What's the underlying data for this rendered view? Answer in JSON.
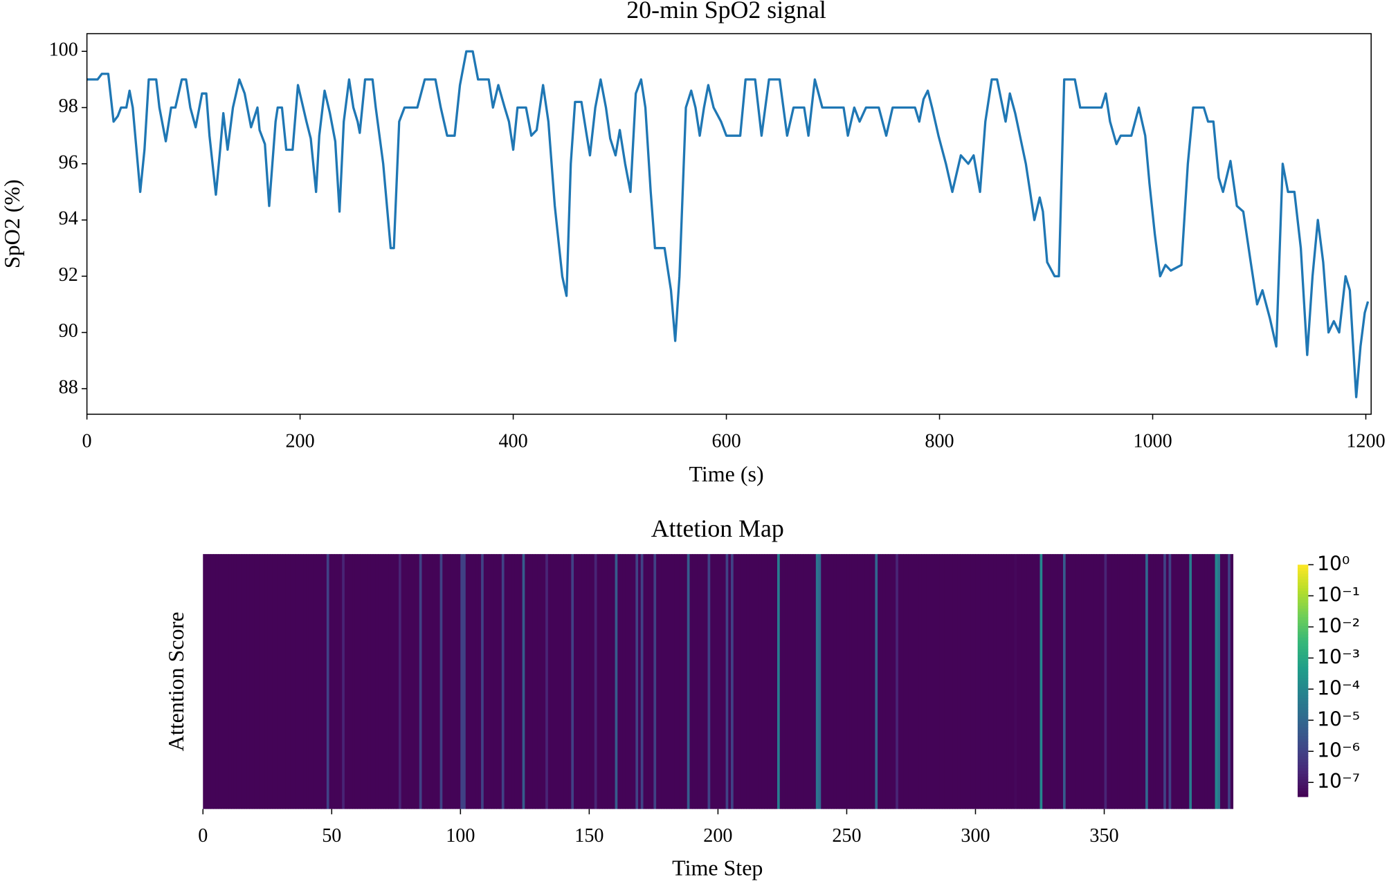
{
  "chart_data": [
    {
      "type": "line",
      "title": "20-min SpO2 signal",
      "xlabel": "Time (s)",
      "ylabel": "SpO2 (%)",
      "color": "#1f77b4",
      "x": [
        0,
        10,
        14,
        20,
        25,
        29,
        32,
        37,
        40,
        43,
        50,
        54,
        58,
        65,
        68,
        74,
        79,
        83,
        89,
        93,
        97,
        102,
        108,
        112,
        115,
        121,
        125,
        128,
        132,
        137,
        143,
        148,
        154,
        160,
        162,
        167,
        171,
        177,
        179,
        183,
        187,
        193,
        198,
        206,
        210,
        215,
        218,
        223,
        228,
        233,
        237,
        241,
        246,
        250,
        254,
        256,
        261,
        268,
        271,
        278,
        285,
        288,
        293,
        298,
        310,
        317,
        327,
        332,
        338,
        345,
        350,
        356,
        362,
        367,
        377,
        381,
        386,
        392,
        396,
        400,
        404,
        412,
        417,
        422,
        428,
        433,
        439,
        446,
        450,
        454,
        458,
        464,
        469,
        472,
        477,
        482,
        487,
        491,
        496,
        500,
        505,
        510,
        515,
        520,
        524,
        529,
        533,
        542,
        548,
        552,
        556,
        562,
        567,
        571,
        575,
        579,
        583,
        588,
        595,
        600,
        613,
        618,
        627,
        633,
        640,
        650,
        657,
        663,
        669,
        673,
        677,
        683,
        690,
        710,
        714,
        720,
        725,
        731,
        743,
        750,
        756,
        777,
        781,
        785,
        789,
        793,
        799,
        806,
        812,
        820,
        827,
        832,
        838,
        843,
        849,
        854,
        862,
        866,
        871,
        881,
        889,
        894,
        897,
        901,
        908,
        912,
        917,
        927,
        932,
        952,
        956,
        960,
        966,
        970,
        980,
        987,
        993,
        997,
        1002,
        1007,
        1012,
        1017,
        1027,
        1033,
        1038,
        1048,
        1052,
        1057,
        1062,
        1066,
        1073,
        1079,
        1085,
        1092,
        1098,
        1103,
        1110,
        1116,
        1122,
        1127,
        1133,
        1139,
        1145,
        1150,
        1155,
        1160,
        1165,
        1170,
        1175,
        1181,
        1185,
        1191,
        1195,
        1199,
        1202
      ],
      "values": [
        99,
        99,
        99.2,
        99.2,
        97.5,
        97.7,
        98,
        98,
        98.6,
        98,
        95,
        96.5,
        99,
        99,
        98,
        96.8,
        98,
        98,
        99,
        99,
        98,
        97.3,
        98.5,
        98.5,
        97,
        94.9,
        96.5,
        97.8,
        96.5,
        98,
        99,
        98.5,
        97.3,
        98,
        97.2,
        96.7,
        94.5,
        97.5,
        98,
        98,
        96.5,
        96.5,
        98.8,
        97.5,
        96.9,
        95,
        97,
        98.6,
        97.8,
        96.8,
        94.3,
        97.5,
        99,
        98,
        97.5,
        97.1,
        99,
        99,
        98,
        96,
        93,
        93,
        97.5,
        98,
        98,
        99,
        99,
        98,
        97,
        97,
        98.8,
        100,
        100,
        99,
        99,
        98,
        98.8,
        98,
        97.5,
        96.5,
        98,
        98,
        97,
        97.2,
        98.8,
        97.5,
        94.5,
        92,
        91.3,
        96,
        98.2,
        98.2,
        97,
        96.3,
        98,
        99,
        98,
        96.9,
        96.3,
        97.2,
        96,
        95,
        98.5,
        99,
        98,
        95,
        93,
        93,
        91.5,
        89.7,
        92,
        98,
        98.6,
        98,
        97,
        98,
        98.8,
        98,
        97.5,
        97,
        97,
        99,
        99,
        97,
        99,
        99,
        97,
        98,
        98,
        98,
        97,
        99,
        98,
        98,
        97,
        98,
        97.5,
        98,
        98,
        97,
        98,
        98,
        97.5,
        98.3,
        98.6,
        98,
        97,
        96,
        95,
        96.3,
        96,
        96.3,
        95,
        97.5,
        99,
        99,
        97.5,
        98.5,
        97.8,
        96,
        94,
        94.8,
        94.3,
        92.5,
        92,
        92,
        99,
        99,
        98,
        98,
        98.5,
        97.5,
        96.7,
        97,
        97,
        98,
        97,
        95.3,
        93.5,
        92,
        92.4,
        92.2,
        92.4,
        96,
        98,
        98,
        97.5,
        97.5,
        95.5,
        95,
        96.1,
        94.5,
        94.3,
        92.5,
        91,
        91.5,
        90.5,
        89.5,
        96,
        95,
        95,
        93,
        89.2,
        92,
        94,
        92.5,
        90,
        90.4,
        90,
        92,
        91.5,
        87.7,
        89.5,
        90.7,
        91.1
      ],
      "xlim": [
        0,
        1205
      ],
      "ylim": [
        87.09,
        100.63
      ],
      "xticks": [
        0,
        200,
        400,
        600,
        800,
        1000,
        1200
      ],
      "yticks": [
        88,
        90,
        92,
        94,
        96,
        98,
        100
      ]
    },
    {
      "type": "heatmap",
      "title": "Attetion Map",
      "xlabel": "Time Step",
      "ylabel": "Attention Score",
      "colormap": "viridis",
      "color_scale": "log",
      "xlim": [
        0,
        400
      ],
      "xticks": [
        0,
        50,
        100,
        150,
        200,
        250,
        300,
        350
      ],
      "clim": [
        3.5e-08,
        1
      ],
      "cticks": [
        {
          "value": 1,
          "label": "10⁰"
        },
        {
          "value": 0.1,
          "label": "10⁻¹"
        },
        {
          "value": 0.01,
          "label": "10⁻²"
        },
        {
          "value": 0.001,
          "label": "10⁻³"
        },
        {
          "value": 0.0001,
          "label": "10⁻⁴"
        },
        {
          "value": 1e-05,
          "label": "10⁻⁵"
        },
        {
          "value": 1e-06,
          "label": "10⁻⁶"
        },
        {
          "value": 1e-07,
          "label": "10⁻⁷"
        }
      ],
      "values": [
        4e-08,
        4e-08,
        4e-08,
        4e-08,
        4e-08,
        4e-08,
        4e-08,
        4e-08,
        4e-08,
        4e-08,
        4e-08,
        4e-08,
        4e-08,
        4e-08,
        4e-08,
        4e-08,
        4e-08,
        4e-08,
        4e-08,
        4e-08,
        4e-08,
        4e-08,
        4e-08,
        4e-08,
        4e-08,
        4e-08,
        4e-08,
        4e-08,
        4e-08,
        4e-08,
        4e-08,
        4e-08,
        4e-08,
        4e-08,
        4e-08,
        4e-08,
        4e-08,
        4e-08,
        4e-08,
        4e-08,
        4e-08,
        4e-08,
        4e-08,
        4e-08,
        4e-08,
        4e-08,
        4e-08,
        4e-08,
        1e-06,
        4e-08,
        4e-08,
        4e-08,
        4e-08,
        4e-08,
        2e-07,
        4e-08,
        4e-08,
        4e-08,
        4e-08,
        4e-08,
        4e-08,
        4e-08,
        4e-08,
        4e-08,
        4e-08,
        4e-08,
        4e-08,
        4e-08,
        4e-08,
        4e-08,
        4e-08,
        4e-08,
        4e-08,
        4e-08,
        4e-08,
        4e-08,
        2e-07,
        4e-08,
        4e-08,
        4e-08,
        4e-08,
        4e-08,
        4e-08,
        4e-08,
        1e-06,
        4e-08,
        4e-08,
        4e-08,
        4e-08,
        4e-08,
        4e-08,
        4e-08,
        1e-06,
        4e-08,
        4e-08,
        4e-08,
        4e-08,
        4e-08,
        4e-08,
        4e-08,
        1e-06,
        1e-06,
        4e-08,
        4e-08,
        4e-08,
        4e-08,
        4e-08,
        4e-08,
        1e-06,
        4e-08,
        4e-08,
        4e-08,
        4e-08,
        4e-08,
        4e-08,
        4e-08,
        1e-06,
        4e-08,
        4e-08,
        4e-08,
        4e-08,
        4e-08,
        4e-08,
        4e-08,
        5e-06,
        4e-08,
        4e-08,
        4e-08,
        4e-08,
        4e-08,
        4e-08,
        4e-08,
        4e-08,
        2e-07,
        4e-08,
        4e-08,
        4e-08,
        4e-08,
        4e-08,
        4e-08,
        4e-08,
        4e-08,
        4e-08,
        1e-06,
        4e-08,
        4e-08,
        4e-08,
        4e-08,
        4e-08,
        4e-08,
        4e-08,
        4e-08,
        2e-07,
        4e-08,
        4e-08,
        4e-08,
        4e-08,
        4e-08,
        4e-08,
        4e-08,
        5e-06,
        4e-08,
        4e-08,
        4e-08,
        4e-08,
        4e-08,
        4e-08,
        4e-08,
        1e-06,
        4e-08,
        1e-06,
        4e-08,
        4e-08,
        4e-08,
        4e-08,
        1e-06,
        4e-08,
        4e-08,
        4e-08,
        4e-08,
        4e-08,
        4e-08,
        4e-08,
        4e-08,
        4e-08,
        4e-08,
        4e-08,
        4e-08,
        5e-06,
        4e-08,
        4e-08,
        4e-08,
        4e-08,
        4e-08,
        4e-08,
        4e-08,
        1e-06,
        4e-08,
        4e-08,
        4e-08,
        4e-08,
        4e-08,
        4e-08,
        1e-06,
        4e-08,
        1e-06,
        4e-08,
        4e-08,
        4e-08,
        4e-08,
        4e-08,
        4e-08,
        4e-08,
        4e-08,
        4e-08,
        4e-08,
        4e-08,
        4e-08,
        4e-08,
        4e-08,
        4e-08,
        4e-08,
        4e-08,
        5e-05,
        4e-08,
        4e-08,
        4e-08,
        4e-08,
        4e-08,
        4e-08,
        4e-08,
        4e-08,
        4e-08,
        4e-08,
        4e-08,
        4e-08,
        4e-08,
        4e-08,
        3e-05,
        1e-05,
        4e-08,
        4e-08,
        4e-08,
        4e-08,
        4e-08,
        4e-08,
        4e-08,
        4e-08,
        4e-08,
        4e-08,
        4e-08,
        4e-08,
        4e-08,
        4e-08,
        4e-08,
        4e-08,
        4e-08,
        4e-08,
        4e-08,
        4e-08,
        4e-08,
        1e-05,
        4e-08,
        4e-08,
        4e-08,
        4e-08,
        4e-08,
        4e-08,
        4e-08,
        2e-07,
        4e-08,
        4e-08,
        4e-08,
        4e-08,
        4e-08,
        4e-08,
        4e-08,
        4e-08,
        4e-08,
        4e-08,
        4e-08,
        4e-08,
        4e-08,
        4e-08,
        4e-08,
        4e-08,
        4e-08,
        4e-08,
        4e-08,
        4e-08,
        4e-08,
        4e-08,
        4e-08,
        4e-08,
        4e-08,
        4e-08,
        4e-08,
        4e-08,
        4e-08,
        4e-08,
        4e-08,
        4e-08,
        4e-08,
        4e-08,
        4e-08,
        4e-08,
        4e-08,
        4e-08,
        4e-08,
        4e-08,
        4e-08,
        4e-08,
        4e-08,
        4e-08,
        4e-08,
        5e-08,
        4e-08,
        4e-08,
        4e-08,
        4e-08,
        4e-08,
        4e-08,
        4e-08,
        4e-08,
        4e-08,
        0.0001,
        4e-08,
        4e-08,
        4e-08,
        4e-08,
        4e-08,
        4e-08,
        4e-08,
        4e-08,
        5e-06,
        4e-08,
        4e-08,
        4e-08,
        4e-08,
        4e-08,
        4e-08,
        4e-08,
        4e-08,
        4e-08,
        4e-08,
        4e-08,
        4e-08,
        4e-08,
        4e-08,
        4e-08,
        2e-07,
        4e-08,
        4e-08,
        4e-08,
        4e-08,
        4e-08,
        4e-08,
        4e-08,
        4e-08,
        4e-08,
        4e-08,
        4e-08,
        4e-08,
        4e-08,
        4e-08,
        4e-08,
        1e-05,
        4e-08,
        4e-08,
        4e-08,
        4e-08,
        4e-08,
        4e-08,
        1e-06,
        4e-08,
        1e-06,
        4e-08,
        4e-08,
        4e-08,
        4e-08,
        4e-08,
        4e-08,
        4e-08,
        5e-05,
        4e-08,
        4e-08,
        4e-08,
        4e-08,
        4e-08,
        4e-08,
        4e-08,
        4e-08,
        4e-08,
        0.0001,
        3e-05,
        4e-08,
        4e-08,
        4e-08,
        1e-06,
        4e-08
      ]
    }
  ]
}
